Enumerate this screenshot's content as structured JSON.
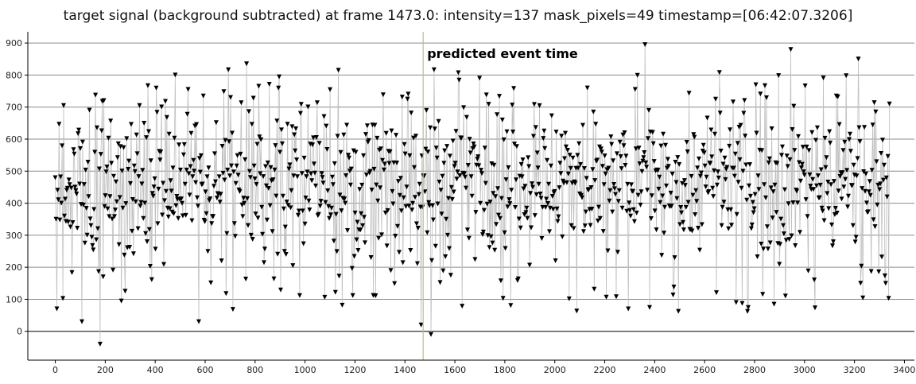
{
  "chart_data": {
    "type": "scatter",
    "title": "target signal (background subtracted) at frame 1473.0: intensity=137 mask_pixels=49 timestamp=[06:42:07.3206]",
    "xlabel": "",
    "ylabel": "",
    "xlim": [
      -110,
      3440
    ],
    "ylim": [
      -90,
      935
    ],
    "xticks": [
      0,
      200,
      400,
      600,
      800,
      1000,
      1200,
      1400,
      1600,
      1800,
      2000,
      2200,
      2400,
      2600,
      2800,
      3000,
      3200,
      3400
    ],
    "yticks": [
      0,
      100,
      200,
      300,
      400,
      500,
      600,
      700,
      800,
      900
    ],
    "grid": "horizontal",
    "marker": "triangle-down",
    "colors": {
      "marker": "#000000",
      "connector": "#bfbfbf",
      "event_line": "#b5c28a",
      "grid": "#8c8c8c",
      "zero_line": "#000000"
    },
    "event": {
      "x": 1473,
      "label": "predicted event time"
    },
    "series": [
      {
        "x_start": 0,
        "x_end": 3340,
        "approx_points": 3340,
        "y_typical_range": [
          250,
          700
        ],
        "y_mean": 470,
        "notable_points": [
          {
            "x": 5,
            "y": 70
          },
          {
            "x": 105,
            "y": 30
          },
          {
            "x": 180,
            "y": -40
          },
          {
            "x": 190,
            "y": 170
          },
          {
            "x": 480,
            "y": 800
          },
          {
            "x": 575,
            "y": 30
          },
          {
            "x": 765,
            "y": 835
          },
          {
            "x": 1465,
            "y": 20
          },
          {
            "x": 1505,
            "y": -10
          },
          {
            "x": 1700,
            "y": 790
          },
          {
            "x": 2360,
            "y": 895
          },
          {
            "x": 2725,
            "y": 90
          },
          {
            "x": 2945,
            "y": 880
          },
          {
            "x": 3215,
            "y": 850
          },
          {
            "x": 3225,
            "y": 150
          },
          {
            "x": 3340,
            "y": 710
          }
        ]
      }
    ]
  }
}
